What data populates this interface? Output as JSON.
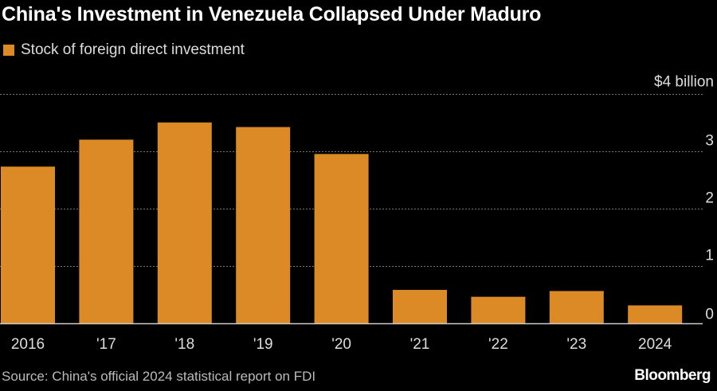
{
  "chart_data": {
    "type": "bar",
    "title": "China's Investment in Venezuela Collapsed Under Maduro",
    "legend": [
      "Stock of foreign direct investment"
    ],
    "legend_placement": "top-left",
    "categories": [
      "2016",
      "'17",
      "'18",
      "'19",
      "'20",
      "'21",
      "'22",
      "'23",
      "2024"
    ],
    "series": [
      {
        "name": "Stock of foreign direct investment",
        "values": [
          2.74,
          3.21,
          3.51,
          3.43,
          2.96,
          0.59,
          0.47,
          0.57,
          0.32
        ],
        "color": "#dc8a25"
      }
    ],
    "ylim": [
      0,
      4
    ],
    "yticks": [
      0,
      1,
      2,
      3,
      4
    ],
    "ytick_labels": [
      "0",
      "1",
      "2",
      "3",
      "$4 billion"
    ],
    "yaxis_side": "right",
    "grid": true,
    "xlabel": "",
    "ylabel": ""
  },
  "source": "Source: China's official 2024 statistical report on FDI",
  "brand": "Bloomberg",
  "colors": {
    "background": "#000000",
    "bar": "#dc8a25",
    "grid": "#777777"
  }
}
